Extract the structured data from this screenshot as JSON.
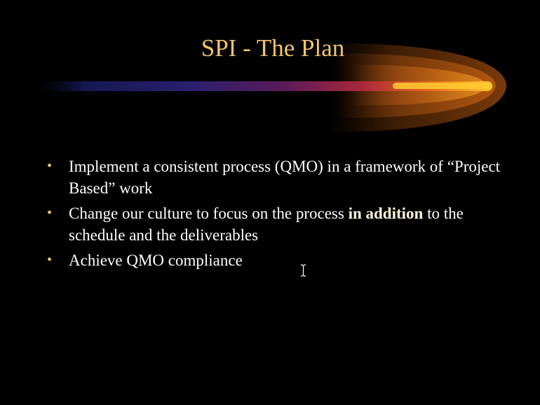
{
  "slide": {
    "title": "SPI - The Plan",
    "bullets": [
      {
        "before": "Implement a consistent process (QMO) in a framework of “Project Based” work",
        "emphasis": "",
        "after": ""
      },
      {
        "before": "Change our culture to focus on the process ",
        "emphasis": "in addition",
        "after": " to the schedule and the deliverables"
      },
      {
        "before": "Achieve QMO compliance",
        "emphasis": "",
        "after": ""
      }
    ],
    "bullet_glyph": "•"
  },
  "colors": {
    "background": "#000000",
    "title": "#f2c46e",
    "body_text": "#ffffff",
    "bullet": "#f2c46e",
    "glow_core": "#ffcc33",
    "beam_start": "#1a1a66"
  },
  "icons": {
    "cursor": "text-ibeam-cursor-icon"
  }
}
